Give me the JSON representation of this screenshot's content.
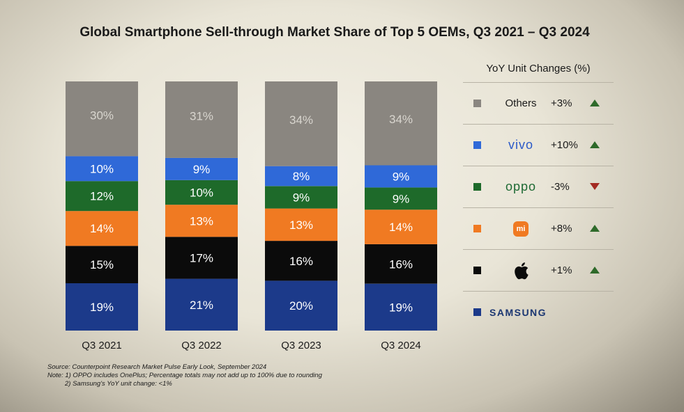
{
  "chart_data": {
    "type": "bar",
    "stacked": true,
    "title": "Global Smartphone Sell-through Market Share of Top 5 OEMs, Q3 2021 – Q3 2024",
    "categories": [
      "Q3 2021",
      "Q3 2022",
      "Q3 2023",
      "Q3 2024"
    ],
    "series": [
      {
        "name": "Samsung",
        "color": "#1c3a8a",
        "label_color": "#ffffff",
        "values": [
          19,
          21,
          20,
          19
        ]
      },
      {
        "name": "Apple",
        "color": "#0b0b0b",
        "label_color": "#ffffff",
        "values": [
          15,
          17,
          16,
          16
        ]
      },
      {
        "name": "Xiaomi",
        "color": "#f07a22",
        "label_color": "#ffffff",
        "values": [
          14,
          13,
          13,
          14
        ]
      },
      {
        "name": "OPPO",
        "color": "#1e6a2a",
        "label_color": "#ffffff",
        "values": [
          12,
          10,
          9,
          9
        ]
      },
      {
        "name": "vivo",
        "color": "#2f69d8",
        "label_color": "#ffffff",
        "values": [
          10,
          9,
          8,
          9
        ]
      },
      {
        "name": "Others",
        "color": "#8a8680",
        "label_color": "#d9d6cf",
        "values": [
          30,
          31,
          34,
          34
        ]
      }
    ],
    "value_suffix": "%",
    "ylim": [
      0,
      100
    ]
  },
  "legend": {
    "heading": "YoY Unit Changes (%)",
    "items": [
      {
        "brand": "Others",
        "change": "+3%",
        "direction": "up"
      },
      {
        "brand": "vivo",
        "change": "+10%",
        "direction": "up"
      },
      {
        "brand": "oppo",
        "change": "-3%",
        "direction": "down"
      },
      {
        "brand": "mi",
        "change": "+8%",
        "direction": "up"
      },
      {
        "brand": "",
        "change": "+1%",
        "direction": "up"
      },
      {
        "brand": "SAMSUNG",
        "change": "",
        "direction": "none"
      }
    ]
  },
  "notes": {
    "source": "Source: Counterpoint Research Market Pulse Early Look, September 2024",
    "note1": "Note: 1) OPPO includes OnePlus; Percentage totals may not add up to 100% due to rounding",
    "note2": "2) Samsung's YoY unit change: <1%"
  }
}
